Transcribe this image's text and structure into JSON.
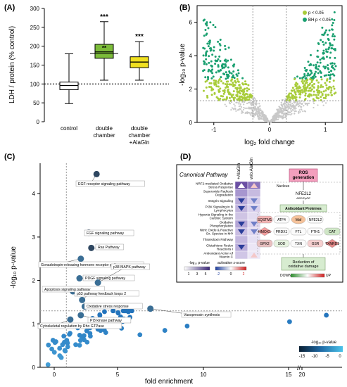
{
  "panels": {
    "a": "(A)",
    "b": "(B)",
    "c": "(C)",
    "d": "(D)"
  },
  "chart_data": [
    {
      "type": "box",
      "panel": "(A)",
      "ylabel": "LDH / protein (% control)",
      "ylim": [
        0,
        300
      ],
      "yticks": [
        "0",
        "50",
        "100",
        "150",
        "200",
        "250",
        "300"
      ],
      "reference_line": 100,
      "categories": [
        "control",
        "double chamber",
        "double chamber +AlaGln"
      ],
      "boxes": [
        {
          "label": "control",
          "min": 48,
          "q1": 85,
          "median": 96,
          "q3": 105,
          "max": 180,
          "color": "#ffffff",
          "stars": ""
        },
        {
          "label": "double chamber",
          "min": 110,
          "q1": 168,
          "median": 185,
          "q3": 205,
          "max": 265,
          "color": "#7cbc3a",
          "stars": "***"
        },
        {
          "label": "double chamber +AlaGln",
          "min": 110,
          "q1": 143,
          "median": 158,
          "q3": 172,
          "max": 212,
          "color": "#f0e020",
          "stars": "***"
        }
      ],
      "bracket_label": "**"
    },
    {
      "type": "scatter",
      "panel": "(B)",
      "xlabel": "log₂ fold change",
      "ylabel": "-log₁₀ p-value",
      "xlim": [
        -1.3,
        1.3
      ],
      "ylim": [
        0,
        7
      ],
      "xticks": [
        "-1",
        "0",
        "1"
      ],
      "yticks": [
        "0",
        "2",
        "4",
        "6"
      ],
      "legend": [
        "p < 0.05",
        "BH p < 0.05"
      ],
      "legend_position": "top-right",
      "colors": {
        "ns": "#c8c8c8",
        "p": "#a8cc3a",
        "bh": "#1aa070"
      },
      "threshold_y": 1.3,
      "threshold_x": [
        -0.3,
        0.3
      ]
    },
    {
      "type": "scatter",
      "panel": "(C)",
      "xlabel": "fold enrichment",
      "ylabel": "-log₁₀ p-value",
      "xlim": [
        0,
        23
      ],
      "ylim": [
        0,
        4.7
      ],
      "xticks": [
        "0",
        "5",
        "10",
        "15",
        "20"
      ],
      "yticks": [
        "0",
        "1",
        "2",
        "3",
        "4"
      ],
      "threshold_y": 1.3,
      "threshold_x": 2,
      "colorbar_title": "-log₁₀ p-value",
      "colorbar_ticks": [
        "-15",
        "-10",
        "-5",
        "0"
      ],
      "pathways": [
        {
          "label": "EGF receptor signaling pathway",
          "x": 4.3,
          "y": 4.45
        },
        {
          "label": "FGF signaling pathway",
          "x": 3.7,
          "y": 3.1
        },
        {
          "label": "Ras Pathway",
          "x": 3.9,
          "y": 2.75
        },
        {
          "label": "Gonadotropin-releasing hormone receptor pathway",
          "x": 3.1,
          "y": 2.5
        },
        {
          "label": "PDGF signaling pathway",
          "x": 3.0,
          "y": 2.05
        },
        {
          "label": "p38 MAPK pathway",
          "x": 4.4,
          "y": 1.95
        },
        {
          "label": "Apoptosis signaling pathway",
          "x": 2.5,
          "y": 1.75
        },
        {
          "label": "p53 pathway feedback loops 2",
          "x": 3.2,
          "y": 1.55
        },
        {
          "label": "Oxidative stress response",
          "x": 3.4,
          "y": 1.4
        },
        {
          "label": "PI3 kinase pathway",
          "x": 3.1,
          "y": 1.2
        },
        {
          "label": "Vasopressin synthesis",
          "x": 8.4,
          "y": 1.35
        },
        {
          "label": "Cytoskeletal regulation by Rho GTPase",
          "x": 2.3,
          "y": 1.1
        }
      ]
    },
    {
      "type": "heatmap",
      "panel": "(D)",
      "title": "Canonical Pathway",
      "columns": [
        "+AlaGln",
        "w/o AlaGln"
      ],
      "rows": [
        {
          "label": "NRF2-mediated Oxidative Stress Response",
          "p": [
            "#6a4fa3",
            "#8a73bd"
          ],
          "arrow": [
            "up",
            "up"
          ]
        },
        {
          "label": "Superoxide Radicals Degradation",
          "p": [
            "#a796cf",
            "#c7bbe0"
          ],
          "arrow": [
            "",
            ""
          ]
        },
        {
          "label": "Integrin Signaling",
          "p": [
            "#b8aad9",
            "#d6cdea"
          ],
          "arrow": [
            "down",
            "down"
          ]
        },
        {
          "label": "PI3K Signaling in B Lymphocytes",
          "p": [
            "#c0b3dc",
            "#d9d0ec"
          ],
          "arrow": [
            "down",
            "down"
          ]
        },
        {
          "label": "Hypoxia Signaling in the Cardiov. System",
          "p": [
            "#cfc4e4",
            "#e2dbf0"
          ],
          "arrow": [
            "",
            ""
          ]
        },
        {
          "label": "Oxidative Phosphorylation",
          "p": [
            "#b3a5d6",
            "#ddd4ee"
          ],
          "arrow": [
            "down",
            "down"
          ]
        },
        {
          "label": "Nitric Oxide & Reactive Ox. Species in MΦ",
          "p": [
            "#c9bde2",
            "#e0d8ef"
          ],
          "arrow": [
            "down",
            "down"
          ]
        },
        {
          "label": "Thioredoxin Pathway",
          "p": [
            "#c3b7df",
            "#e6e0f3"
          ],
          "arrow": [
            "",
            ""
          ]
        },
        {
          "label": "Glutathione Redox Reactions I",
          "p": [
            "#b9acda",
            "#ebe6f5"
          ],
          "arrow": [
            "down",
            ""
          ]
        },
        {
          "label": "Antioxidant Action of Vitamin C",
          "p": [
            "#d0c6e6",
            "#ece7f6"
          ],
          "arrow": [
            "",
            "up"
          ]
        }
      ],
      "pvalue_legend_title": "-log₁₀ p-value",
      "pvalue_ticks": [
        "1",
        "3",
        "5"
      ],
      "zscore_legend_title": "activation z-score",
      "zscore_ticks": [
        "-2",
        "0",
        "2"
      ],
      "ros_label": "ROS generation",
      "nucleus_label": "Nucleus",
      "nrf2_label": "NFE2L2",
      "are_label": "ARE/EpRE",
      "antioxidant_label": "Antioxidant Proteines",
      "genes": [
        "SQSTM1",
        "ATF4",
        "Maf",
        "NFE2L2",
        "HMOX1",
        "PRDX1",
        "FTL",
        "FTH1",
        "CAT",
        "GPX2",
        "SOD",
        "TXN",
        "GSR",
        "TXNRD1"
      ],
      "reduction_label": "Reduction of oxidative damage",
      "down_label": "DOWN",
      "up_label": "UP"
    }
  ]
}
